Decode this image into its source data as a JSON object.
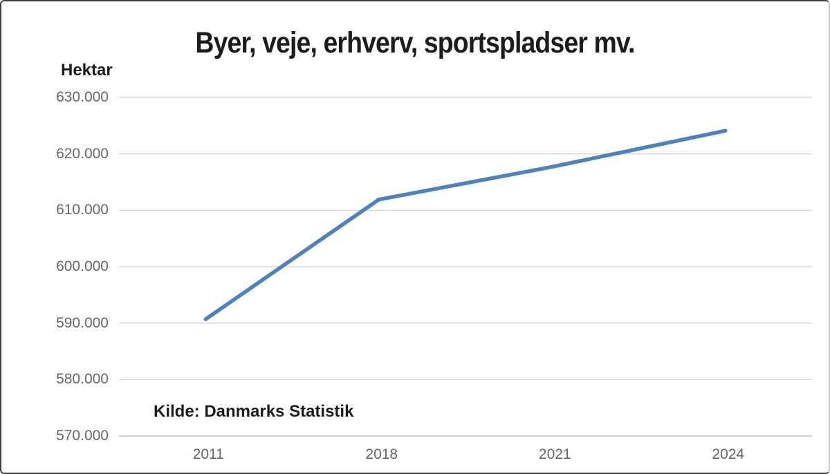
{
  "chart_data": {
    "type": "line",
    "title": "Byer, veje, erhverv, sportspladser mv.",
    "unit_label": "Hektar",
    "source": "Kilde: Danmarks Statistik",
    "xlabel": "",
    "ylabel": "Hektar",
    "categories": [
      "2011",
      "2018",
      "2021",
      "2024"
    ],
    "values": [
      590700,
      611900,
      617700,
      624100
    ],
    "ylim": [
      570000,
      630000
    ],
    "ytick_step": 10000,
    "ytick_labels": [
      "570.000",
      "580.000",
      "590.000",
      "600.000",
      "610.000",
      "620.000",
      "630.000"
    ],
    "grid": true,
    "legend_position": "none",
    "line_color": "#4f81bd",
    "gridline_color": "#d9d9d9",
    "axis_line_color": "#d0d0d0",
    "tick_label_color": "#666666",
    "text_color": "#1c1c1c",
    "background_color": "#ffffff"
  }
}
